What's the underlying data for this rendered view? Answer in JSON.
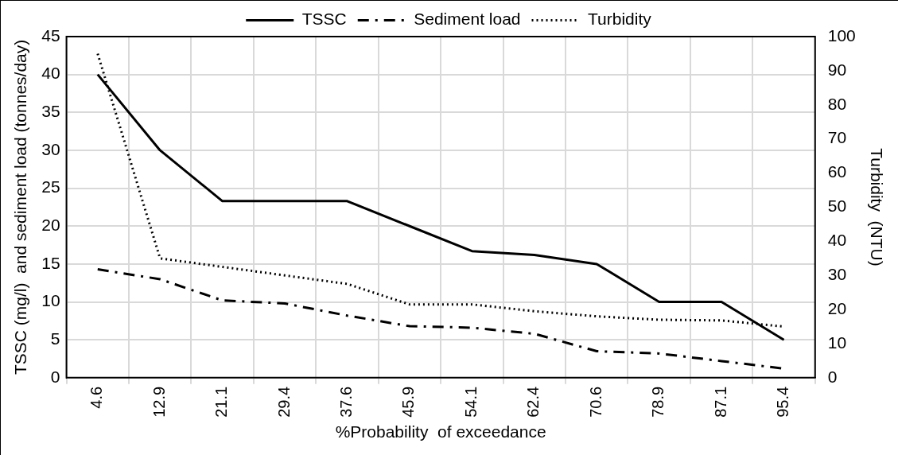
{
  "chart_data": {
    "type": "line",
    "xlabel": "%Probability  of exceedance",
    "ylabel": "TSSC (mg/l)  and sediment load (tonnes/day)",
    "y2label": "Turbidity  (NTU)",
    "categories": [
      "4.6",
      "12.9",
      "21.1",
      "29.4",
      "37.6",
      "45.9",
      "54.1",
      "62.4",
      "70.6",
      "78.9",
      "87.1",
      "95.4"
    ],
    "series": [
      {
        "name": "TSSC",
        "color": "#000000",
        "line_style": "solid",
        "values": [
          40,
          30,
          23.3,
          23.3,
          23.3,
          20,
          16.7,
          16.2,
          15,
          10,
          10,
          5
        ]
      },
      {
        "name": "Sediment load",
        "color": "#000000",
        "line_style": "dashdot",
        "values": [
          14.3,
          13,
          10.2,
          9.8,
          8.2,
          6.8,
          6.6,
          5.8,
          3.5,
          3.2,
          2.2,
          1.2
        ]
      },
      {
        "name": "Turbidity",
        "color": "#000000",
        "line_style": "dotted",
        "axis": "y2",
        "values": [
          95,
          35,
          32.5,
          30,
          27.5,
          21.5,
          21.5,
          19.5,
          18,
          17,
          16.8,
          15
        ]
      }
    ],
    "ylim": [
      0,
      45
    ],
    "yticks": [
      0,
      5,
      10,
      15,
      20,
      25,
      30,
      35,
      40,
      45
    ],
    "y2lim": [
      0,
      100
    ],
    "y2ticks": [
      0,
      10,
      20,
      30,
      40,
      50,
      60,
      70,
      80,
      90,
      100
    ],
    "grid": true,
    "legend": "top",
    "marker": "none"
  }
}
